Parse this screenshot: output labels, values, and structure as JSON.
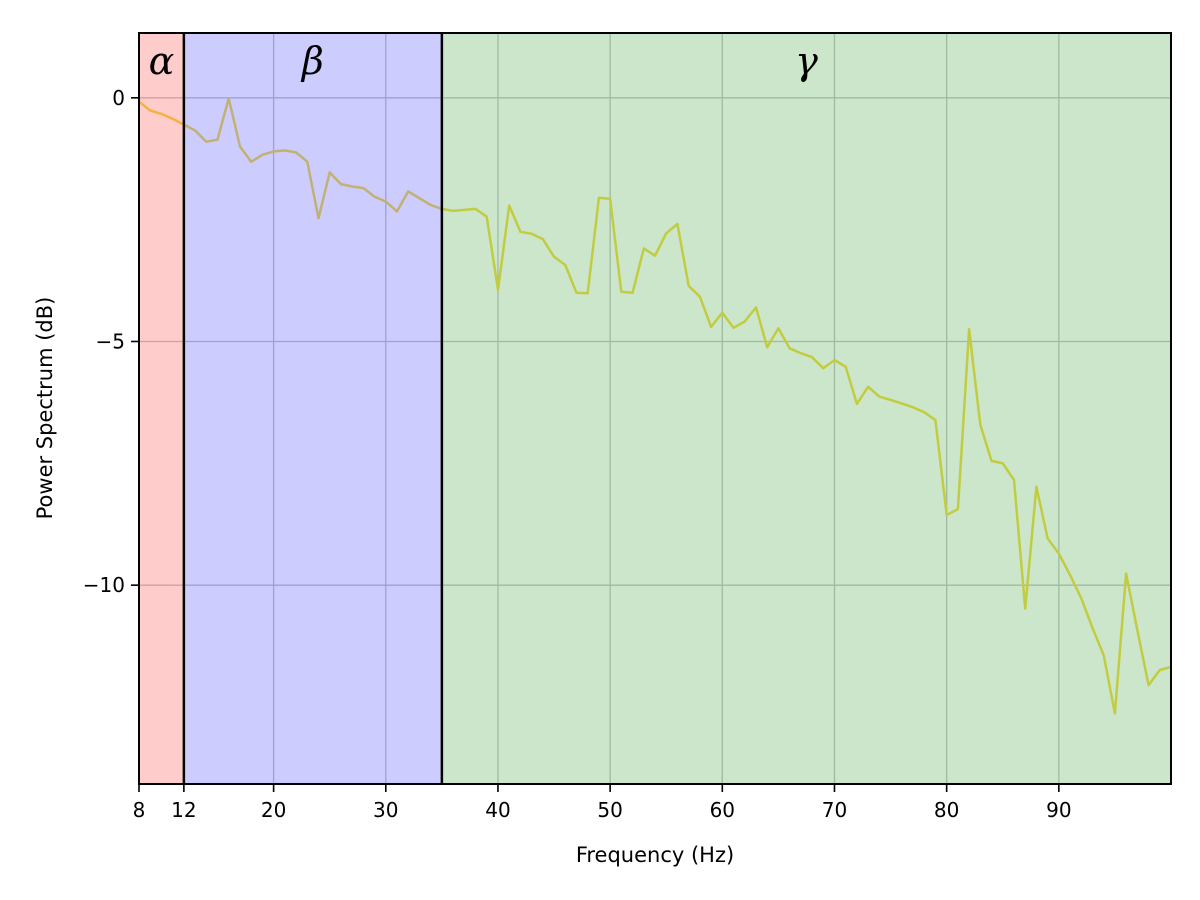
{
  "figure": {
    "background": "#ffffff",
    "plot_border_color": "#000000"
  },
  "chart_data": {
    "type": "line",
    "title": "",
    "xlabel": "Frequency (Hz)",
    "ylabel": "Power Spectrum (dB)",
    "xlim": [
      8,
      100
    ],
    "ylim": [
      -14.08,
      1.33
    ],
    "grid": true,
    "grid_color": "#c9c9c9",
    "legend": "none",
    "xticks": {
      "values": [
        8,
        12,
        20,
        30,
        40,
        50,
        60,
        70,
        80,
        90
      ],
      "labels": [
        "8",
        "12",
        "20",
        "30",
        "40",
        "50",
        "60",
        "70",
        "80",
        "90"
      ]
    },
    "yticks": {
      "values": [
        0,
        -5,
        -10
      ],
      "labels": [
        "0",
        "−5",
        "−10"
      ]
    },
    "bands": [
      {
        "name": "alpha-band",
        "label": "α",
        "range": [
          8,
          12
        ],
        "color": "rgba(255,0,0,0.2)"
      },
      {
        "name": "beta-band",
        "label": "β",
        "range": [
          12,
          35
        ],
        "color": "rgba(0,0,255,0.2)"
      },
      {
        "name": "gamma-band",
        "label": "γ",
        "range": [
          35,
          100
        ],
        "color": "rgba(0,128,0,0.2)"
      }
    ],
    "band_boundaries": {
      "values": [
        12,
        35
      ],
      "color": "#000000"
    },
    "series": [
      {
        "name": "power-spectrum",
        "color": "#f2df52",
        "x_start": 8,
        "x_step": 1,
        "values": [
          -0.08,
          -0.26,
          -0.33,
          -0.43,
          -0.55,
          -0.67,
          -0.9,
          -0.86,
          -0.01,
          -1.0,
          -1.31,
          -1.17,
          -1.1,
          -1.08,
          -1.12,
          -1.31,
          -2.47,
          -1.53,
          -1.77,
          -1.82,
          -1.85,
          -2.03,
          -2.13,
          -2.33,
          -1.92,
          -2.06,
          -2.2,
          -2.28,
          -2.32,
          -2.3,
          -2.28,
          -2.44,
          -3.94,
          -2.21,
          -2.75,
          -2.79,
          -2.9,
          -3.26,
          -3.43,
          -4.0,
          -4.01,
          -2.05,
          -2.07,
          -3.98,
          -4.0,
          -3.09,
          -3.24,
          -2.78,
          -2.59,
          -3.86,
          -4.08,
          -4.7,
          -4.41,
          -4.72,
          -4.59,
          -4.3,
          -5.12,
          -4.73,
          -5.14,
          -5.24,
          -5.32,
          -5.55,
          -5.38,
          -5.52,
          -6.28,
          -5.93,
          -6.13,
          -6.2,
          -6.27,
          -6.35,
          -6.45,
          -6.61,
          -8.56,
          -8.44,
          -4.75,
          -6.71,
          -7.45,
          -7.5,
          -7.84,
          -10.48,
          -7.98,
          -9.04,
          -9.35,
          -9.79,
          -10.27,
          -10.88,
          -11.44,
          -12.63,
          -9.76,
          -10.92,
          -12.05,
          -11.74,
          -11.68
        ]
      }
    ]
  }
}
